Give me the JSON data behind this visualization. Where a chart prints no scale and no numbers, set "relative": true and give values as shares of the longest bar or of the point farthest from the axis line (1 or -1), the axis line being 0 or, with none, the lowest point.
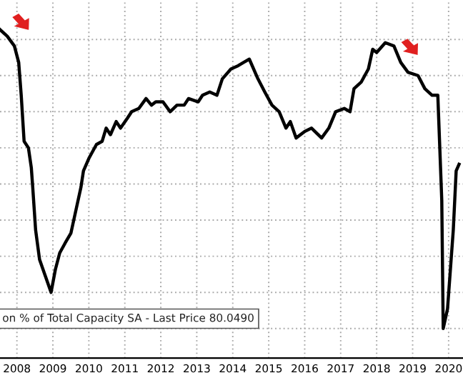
{
  "chart_data": {
    "type": "line",
    "relative": true,
    "grid": true,
    "legend": false,
    "xlim": [
      2008.03,
      2020.9
    ],
    "xticks": [
      {
        "value": 2008.5,
        "label": "2008"
      },
      {
        "value": 2009.5,
        "label": "2009"
      },
      {
        "value": 2010.5,
        "label": "2010"
      },
      {
        "value": 2011.5,
        "label": "2011"
      },
      {
        "value": 2012.5,
        "label": "2012"
      },
      {
        "value": 2013.5,
        "label": "2013"
      },
      {
        "value": 2014.5,
        "label": "2014"
      },
      {
        "value": 2015.5,
        "label": "2015"
      },
      {
        "value": 2016.5,
        "label": "2016"
      },
      {
        "value": 2017.5,
        "label": "2017"
      },
      {
        "value": 2018.5,
        "label": "2018"
      },
      {
        "value": 2019.5,
        "label": "2019"
      },
      {
        "value": 2020.5,
        "label": "2020"
      }
    ],
    "annotations": [
      "on % of Total Capacity SA - Last Price 80.0490"
    ],
    "series": [
      {
        "color": "#000000",
        "x": [
          2008.03,
          2008.23,
          2008.43,
          2008.55,
          2008.62,
          2008.7,
          2008.82,
          2008.9,
          2008.94,
          2009.02,
          2009.13,
          2009.29,
          2009.45,
          2009.57,
          2009.69,
          2009.84,
          2010.0,
          2010.12,
          2010.28,
          2010.35,
          2010.51,
          2010.71,
          2010.87,
          2010.98,
          2011.1,
          2011.26,
          2011.38,
          2011.57,
          2011.69,
          2011.89,
          2012.09,
          2012.24,
          2012.36,
          2012.56,
          2012.76,
          2012.95,
          2013.15,
          2013.27,
          2013.54,
          2013.66,
          2013.86,
          2014.06,
          2014.21,
          2014.45,
          2014.65,
          2014.8,
          2014.96,
          2015.2,
          2015.39,
          2015.59,
          2015.79,
          2015.98,
          2016.1,
          2016.26,
          2016.5,
          2016.69,
          2016.97,
          2017.17,
          2017.36,
          2017.6,
          2017.76,
          2017.87,
          2018.07,
          2018.27,
          2018.39,
          2018.5,
          2018.74,
          2018.98,
          2019.17,
          2019.37,
          2019.65,
          2019.84,
          2020.04,
          2020.2,
          2020.31,
          2020.35,
          2020.47,
          2020.63,
          2020.71,
          2020.79
        ],
        "values": [
          1.0,
          0.98,
          0.95,
          0.9,
          0.8,
          0.66,
          0.64,
          0.58,
          0.52,
          0.39,
          0.3,
          0.25,
          0.2,
          0.27,
          0.32,
          0.35,
          0.38,
          0.44,
          0.52,
          0.57,
          0.61,
          0.65,
          0.66,
          0.7,
          0.68,
          0.72,
          0.7,
          0.73,
          0.75,
          0.76,
          0.79,
          0.77,
          0.78,
          0.78,
          0.75,
          0.77,
          0.77,
          0.79,
          0.78,
          0.8,
          0.81,
          0.8,
          0.85,
          0.88,
          0.89,
          0.9,
          0.91,
          0.85,
          0.81,
          0.77,
          0.75,
          0.7,
          0.72,
          0.67,
          0.69,
          0.7,
          0.67,
          0.7,
          0.75,
          0.76,
          0.75,
          0.82,
          0.84,
          0.88,
          0.94,
          0.93,
          0.96,
          0.95,
          0.9,
          0.87,
          0.86,
          0.82,
          0.8,
          0.8,
          0.48,
          0.09,
          0.15,
          0.39,
          0.57,
          0.59
        ]
      }
    ]
  }
}
